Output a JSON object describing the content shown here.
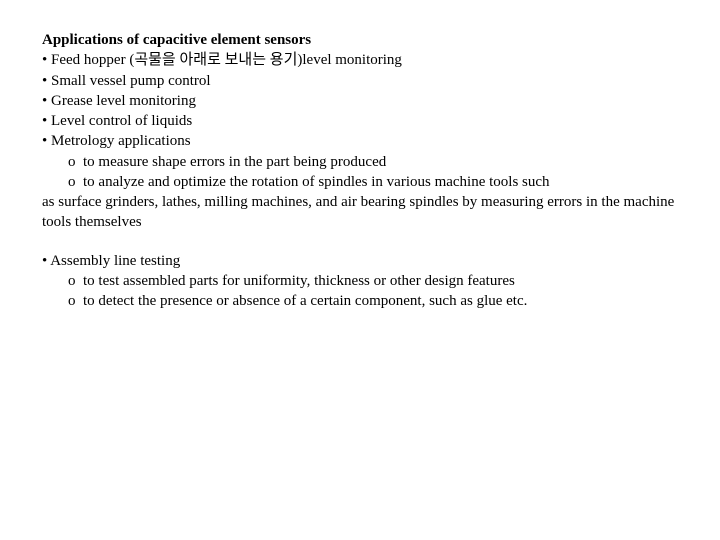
{
  "title": "Applications of capacitive element sensors",
  "bulletItems": [
    "Feed hopper (곡물을 아래로 보내는 용기)level monitoring",
    "Small vessel pump control",
    "Grease level monitoring",
    "Level control of liquids",
    "Metrology applications"
  ],
  "metrologySub1": "to measure shape errors in the part being produced",
  "metrologySub2": "to analyze and optimize the rotation of spindles in various machine tools such",
  "metrologyTrailing": "as surface grinders, lathes, milling machines, and air bearing spindles by measuring errors in the machine tools themselves",
  "assemblyTitle": "Assembly line testing",
  "assemblySub1": "to test assembled parts for uniformity, thickness or other design features",
  "assemblySub2": "to detect the presence or absence of a certain component, such as glue etc.",
  "bulletChar": "•",
  "subBulletChar": "o"
}
